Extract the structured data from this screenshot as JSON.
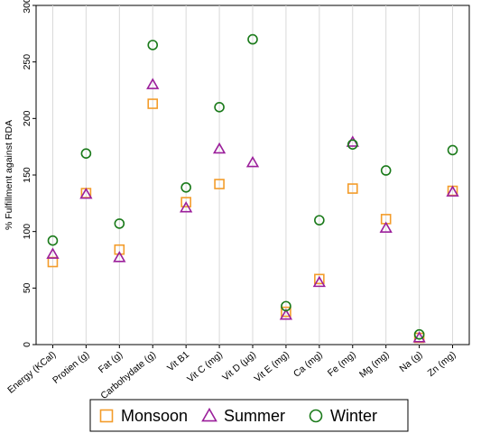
{
  "chart_data": {
    "type": "scatter",
    "ylabel": "% Fulfillment against RDA",
    "xlabel": "",
    "ylim": [
      0,
      300
    ],
    "yticks": [
      0,
      50,
      100,
      150,
      200,
      250,
      300
    ],
    "grid": "vertical",
    "legend_position": "bottom",
    "categories": [
      "Energy (KCal)",
      "Protien (g)",
      "Fat (g)",
      "Carbohydate (g)",
      "Vit B1",
      "Vit C (mg)",
      "Vit D (µg)",
      "Vit E (mg)",
      "Ca (mg)",
      "Fe (mg)",
      "Mg (mg)",
      "Na (g)",
      "Zn (mg)"
    ],
    "series": [
      {
        "name": "Monsoon",
        "marker": "square",
        "color": "#f39c2a",
        "values": [
          73,
          134,
          84,
          213,
          126,
          142,
          null,
          29,
          58,
          138,
          111,
          6,
          136
        ]
      },
      {
        "name": "Summer",
        "marker": "triangle",
        "color": "#9b1f9b",
        "values": [
          80,
          133,
          77,
          230,
          121,
          173,
          161,
          26,
          55,
          179,
          103,
          6,
          135
        ]
      },
      {
        "name": "Winter",
        "marker": "circle",
        "color": "#1a7a1a",
        "values": [
          92,
          169,
          107,
          265,
          139,
          210,
          270,
          34,
          110,
          177,
          154,
          9,
          172
        ]
      }
    ]
  }
}
